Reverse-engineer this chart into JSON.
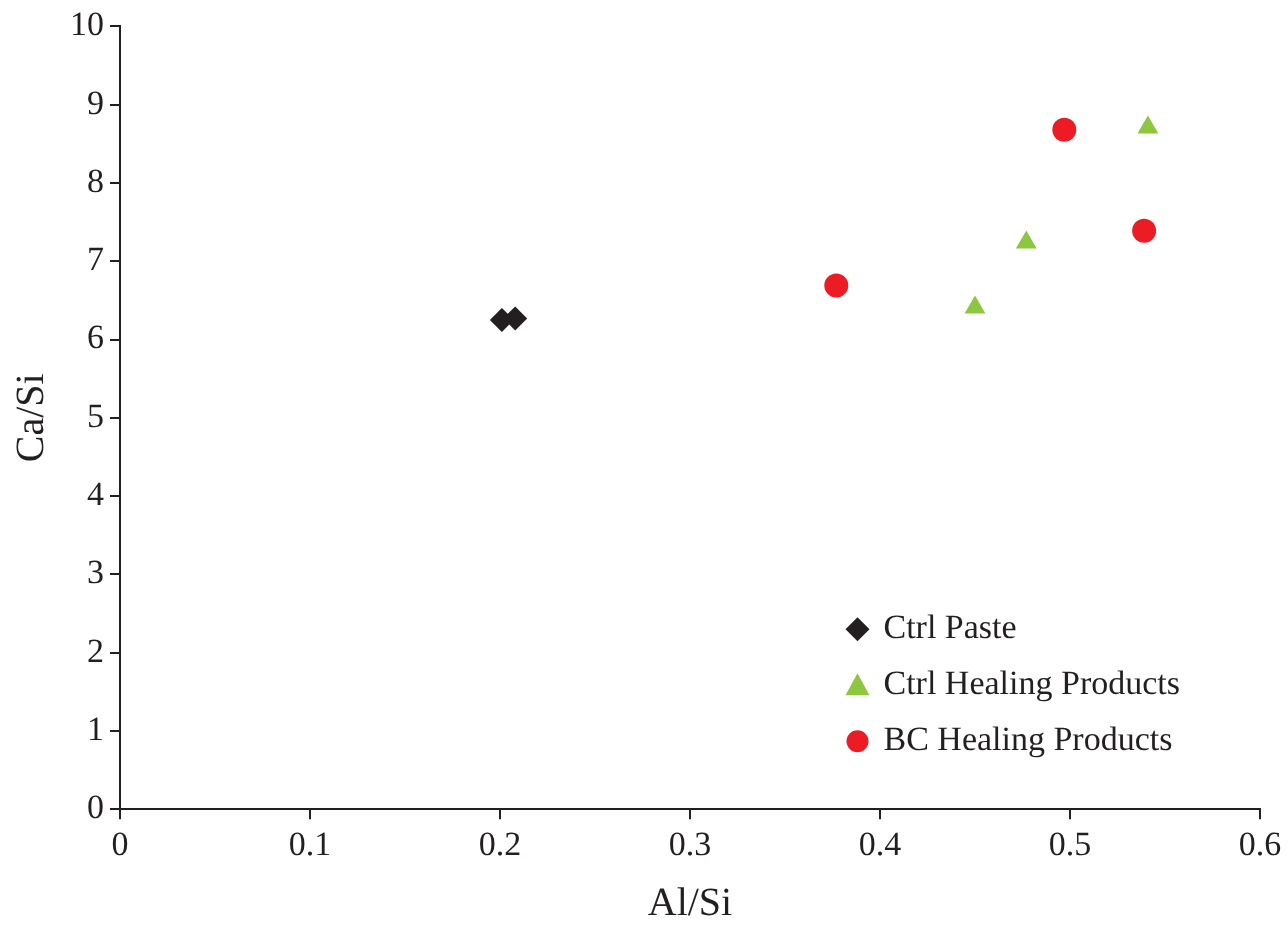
{
  "chart_data": {
    "type": "scatter",
    "xlabel": "Al/Si",
    "ylabel": "Ca/Si",
    "xlim": [
      0,
      0.6
    ],
    "xticks": [
      {
        "value": 0,
        "label": "0"
      },
      0.1,
      0.2,
      0.3,
      0.4,
      0.5,
      0.6
    ],
    "ylim": [
      0,
      10
    ],
    "yticks": [
      0,
      1,
      2,
      3,
      4,
      5,
      6,
      7,
      8,
      9,
      10
    ],
    "grid": false,
    "legend": "bottom right",
    "series": [
      {
        "name": "Ctrl Paste",
        "color": "#231f20",
        "marker": "diamond",
        "x": [
          0.201,
          0.208
        ],
        "values": [
          6.25,
          6.27
        ]
      },
      {
        "name": "Ctrl Healing Products",
        "color": "#8dc63f",
        "marker": "triangle",
        "x": [
          0.45,
          0.477,
          0.541
        ],
        "values": [
          6.41,
          7.24,
          8.71
        ]
      },
      {
        "name": "BC Healing Products",
        "color": "#ed1c24",
        "marker": "circle",
        "x": [
          0.377,
          0.497,
          0.539
        ],
        "values": [
          6.69,
          8.68,
          7.39
        ]
      }
    ]
  }
}
